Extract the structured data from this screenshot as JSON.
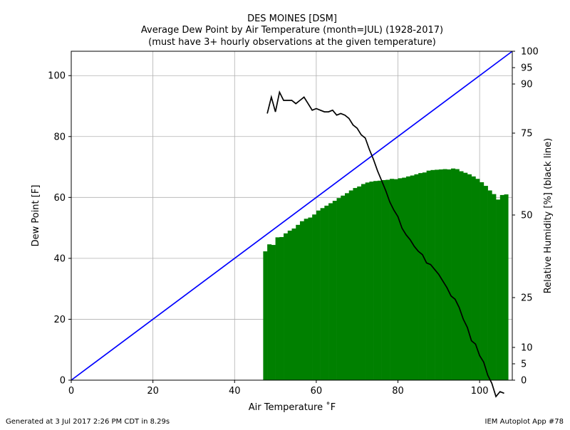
{
  "chart_data": {
    "type": "bar",
    "title": "DES MOINES [DSM]",
    "subtitle_lines": [
      "Average Dew Point by Air Temperature (month=JUL) (1928-2017)",
      "(must have 3+ hourly observations at the given temperature)"
    ],
    "xlabel": "Air Temperature ˚F",
    "ylabel": "Dew Point [F]",
    "y2label": "Relative Humidity [%] (black line)",
    "xlim": [
      0,
      108
    ],
    "ylim": [
      0,
      108
    ],
    "x_ticks": [
      0,
      20,
      40,
      60,
      80,
      100
    ],
    "y_ticks": [
      0,
      20,
      40,
      60,
      80,
      100
    ],
    "y2_ticks": [
      0,
      5,
      10,
      25,
      50,
      75,
      90,
      95,
      100
    ],
    "grid": true,
    "colors": {
      "bars": "#008000",
      "rh_line": "#000000",
      "saturation_line": "#0000ff"
    },
    "bar_x": [
      47,
      48,
      49,
      50,
      51,
      52,
      53,
      54,
      55,
      56,
      57,
      58,
      59,
      60,
      61,
      62,
      63,
      64,
      65,
      66,
      67,
      68,
      69,
      70,
      71,
      72,
      73,
      74,
      75,
      76,
      77,
      78,
      79,
      80,
      81,
      82,
      83,
      84,
      85,
      86,
      87,
      88,
      89,
      90,
      91,
      92,
      93,
      94,
      95,
      96,
      97,
      98,
      99,
      100,
      101,
      102,
      103,
      104,
      105,
      106
    ],
    "dew_point_values": [
      42.3,
      44.6,
      44.4,
      46.9,
      47,
      48.2,
      49.1,
      49.8,
      51,
      52.2,
      53,
      53.4,
      54.4,
      55.7,
      56.5,
      57.3,
      58.1,
      58.9,
      59.8,
      60.6,
      61.4,
      62.3,
      63.1,
      63.6,
      64.4,
      64.9,
      65.2,
      65.4,
      65.5,
      65.7,
      65.8,
      66.1,
      66,
      66.3,
      66.5,
      66.9,
      67.2,
      67.6,
      68,
      68.2,
      68.8,
      69,
      69.1,
      69.2,
      69.3,
      69.2,
      69.5,
      69.3,
      68.6,
      68.1,
      67.6,
      66.9,
      66.1,
      65,
      63.8,
      62.3,
      61.1,
      59.3,
      60.8,
      61
    ],
    "rh_x": [
      48,
      49,
      50,
      51,
      52,
      53,
      54,
      55,
      56,
      57,
      58,
      59,
      60,
      61,
      62,
      63,
      64,
      65,
      66,
      67,
      68,
      69,
      70,
      71,
      72,
      73,
      74,
      75,
      76,
      77,
      78,
      79,
      80,
      81,
      82,
      83,
      84,
      85,
      86,
      87,
      88,
      89,
      90,
      91,
      92,
      93,
      94,
      95,
      96,
      97,
      98,
      99,
      100,
      101,
      102,
      103,
      104,
      105,
      106
    ],
    "rh_values": [
      81,
      86,
      81.5,
      87.5,
      85,
      85,
      85,
      84,
      85,
      86,
      84,
      82,
      82.5,
      82,
      81.5,
      81.5,
      82,
      80.5,
      81,
      80.5,
      79.5,
      77.5,
      76.5,
      74.5,
      73.5,
      70,
      67,
      63.5,
      60.5,
      57.5,
      54,
      51.5,
      49.5,
      46,
      44,
      42.5,
      40.5,
      39,
      38,
      35.5,
      35,
      33.5,
      32,
      30,
      28,
      25.5,
      24.5,
      22,
      18.5,
      16,
      12,
      11,
      7.5,
      5.5,
      1.5,
      -1,
      -5,
      -3.5,
      -4
    ]
  },
  "footer": {
    "left": "Generated at 3 Jul 2017 2:26 PM CDT in 8.29s",
    "right": "IEM Autoplot App #78"
  }
}
